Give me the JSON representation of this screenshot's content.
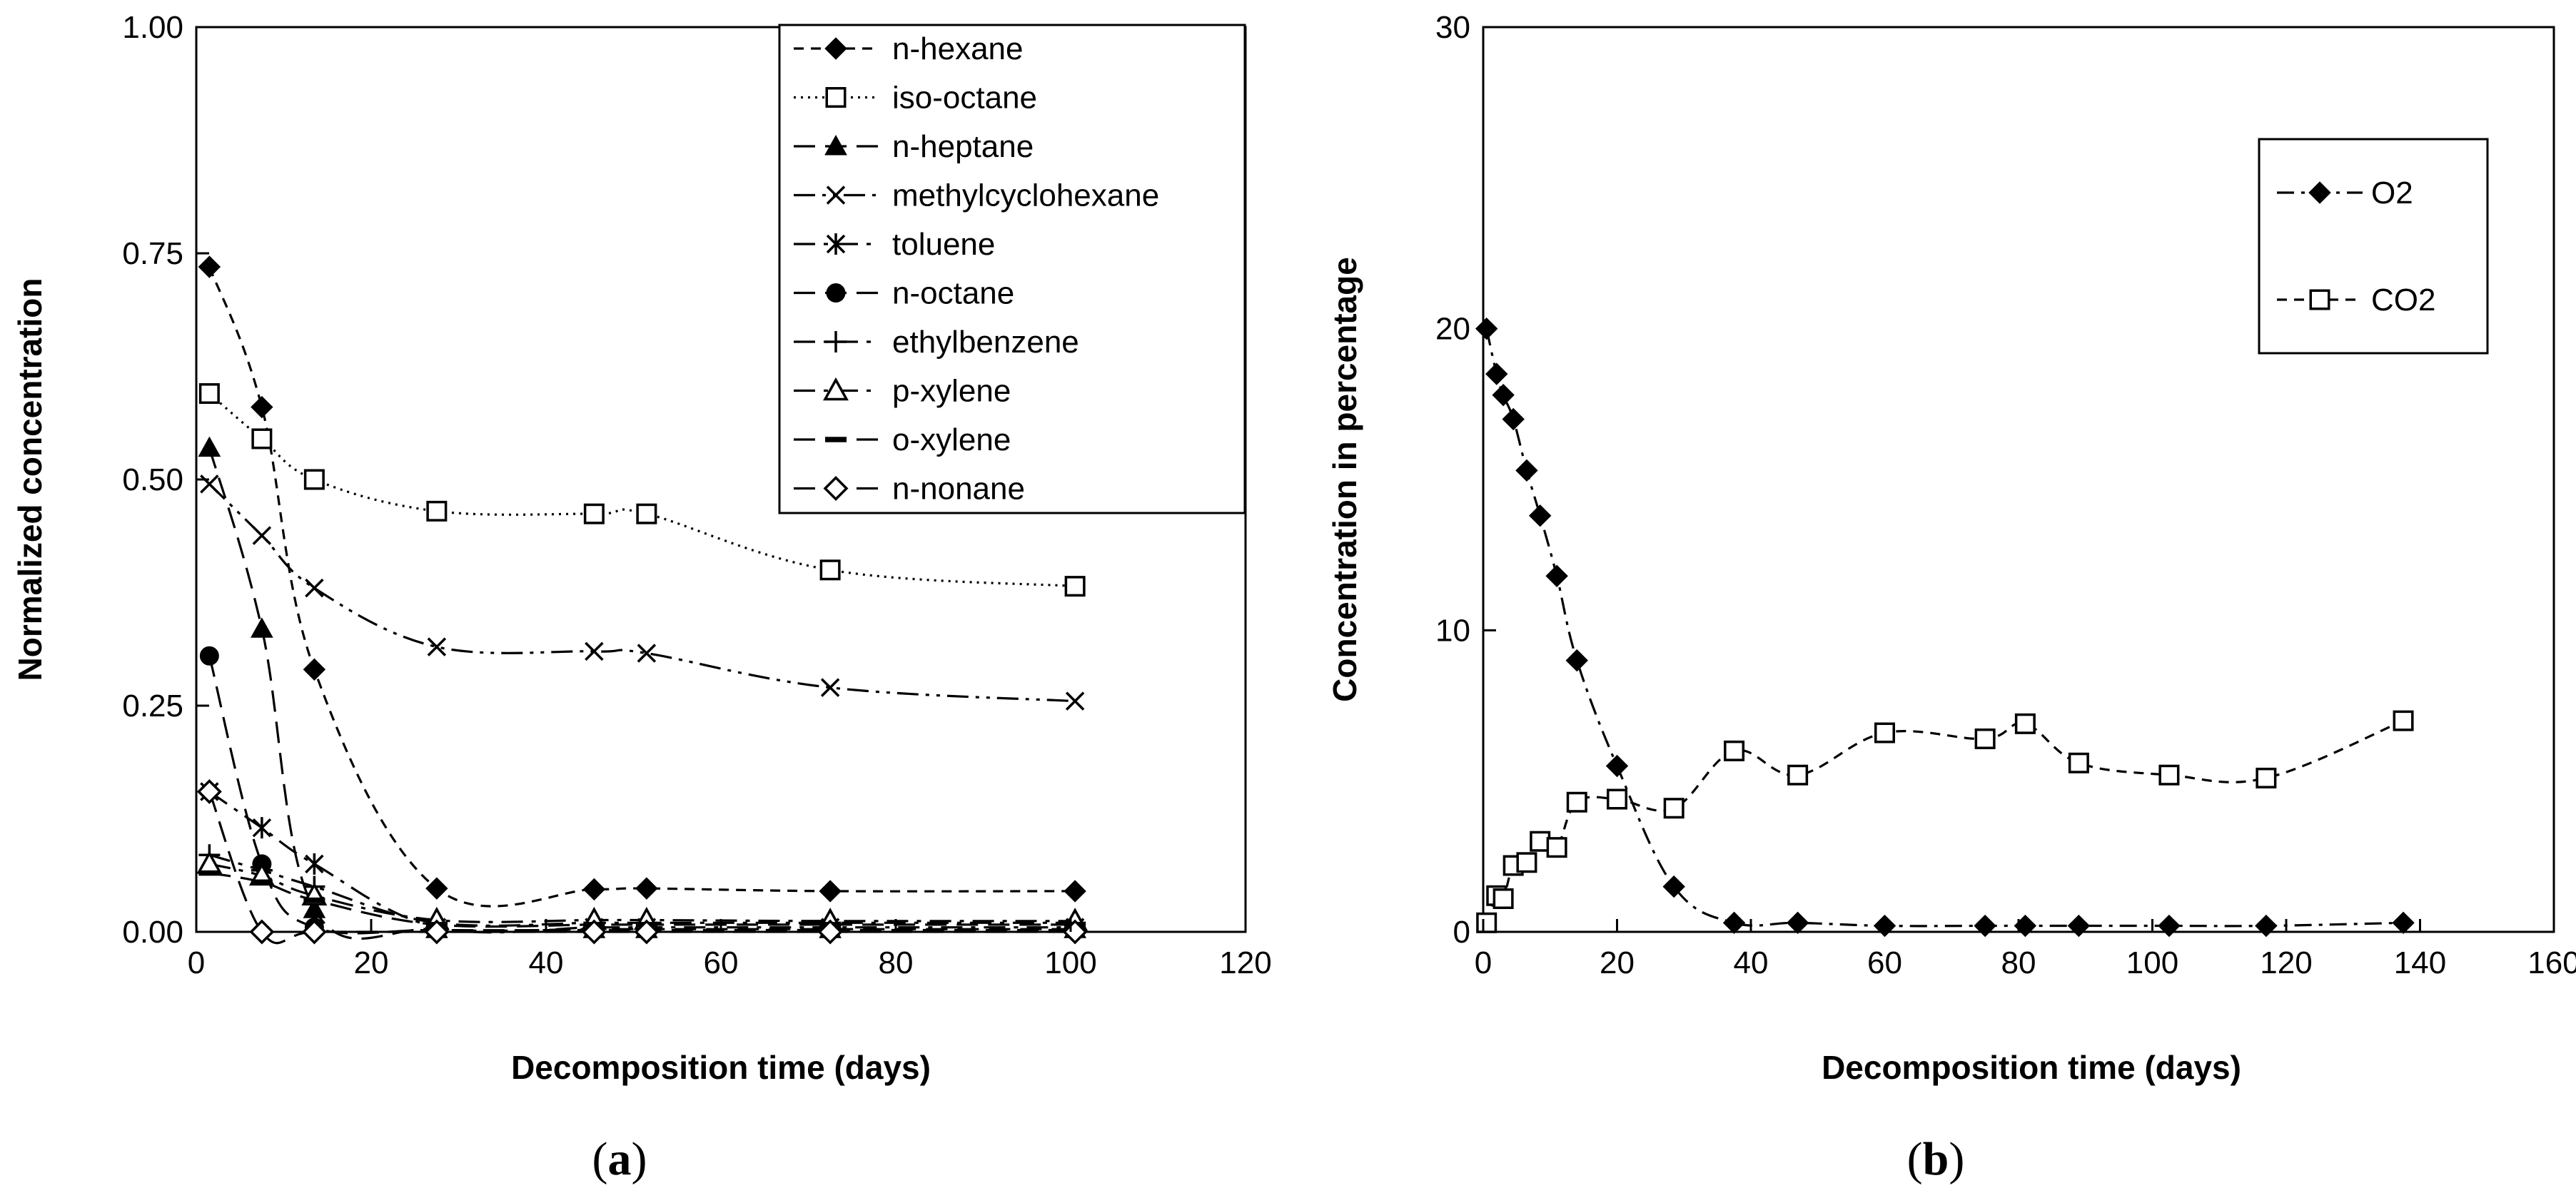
{
  "chart_data": [
    {
      "panel": "a",
      "type": "line",
      "title": "",
      "xlabel": "Decomposition time (days)",
      "ylabel": "Normalized concentration",
      "xlim": [
        0,
        120
      ],
      "ylim": [
        0,
        1
      ],
      "xticks": [
        "0",
        "20",
        "40",
        "60",
        "80",
        "100",
        "120"
      ],
      "yticks": [
        "0.00",
        "0.25",
        "0.50",
        "0.75",
        "1.00"
      ],
      "legend_position": "top-right",
      "series": [
        {
          "name": "n-hexane",
          "marker": "diamond-filled",
          "dash": "dashed",
          "x": [
            1.5,
            7.5,
            13.5,
            27.5,
            45.5,
            51.5,
            72.5,
            100.5
          ],
          "y": [
            0.735,
            0.58,
            0.29,
            0.048,
            0.047,
            0.048,
            0.045,
            0.045
          ]
        },
        {
          "name": "iso-octane",
          "marker": "square-open",
          "dash": "dotted",
          "x": [
            1.5,
            7.5,
            13.5,
            27.5,
            45.5,
            51.5,
            72.5,
            100.5
          ],
          "y": [
            0.595,
            0.545,
            0.5,
            0.465,
            0.462,
            0.462,
            0.4,
            0.382
          ]
        },
        {
          "name": "n-heptane",
          "marker": "triangle-filled",
          "dash": "longdash",
          "x": [
            1.5,
            7.5,
            13.5,
            27.5,
            45.5,
            51.5,
            72.5,
            100.5
          ],
          "y": [
            0.535,
            0.335,
            0.025,
            0.003,
            0.003,
            0.003,
            0.003,
            0.003
          ]
        },
        {
          "name": "methylcyclohexane",
          "marker": "x",
          "dash": "dashdotdot",
          "x": [
            1.5,
            7.5,
            13.5,
            27.5,
            45.5,
            51.5,
            72.5,
            100.5
          ],
          "y": [
            0.495,
            0.438,
            0.38,
            0.315,
            0.31,
            0.308,
            0.27,
            0.255
          ]
        },
        {
          "name": "toluene",
          "marker": "asterisk",
          "dash": "longdashdot",
          "x": [
            1.5,
            7.5,
            13.5,
            27.5,
            45.5,
            51.5,
            72.5,
            100.5
          ],
          "y": [
            0.155,
            0.115,
            0.075,
            0.005,
            0.005,
            0.005,
            0.005,
            0.005
          ]
        },
        {
          "name": "n-octane",
          "marker": "circle-filled",
          "dash": "longdash",
          "x": [
            1.5,
            7.5,
            13.5,
            27.5,
            45.5,
            51.5,
            72.5,
            100.5
          ],
          "y": [
            0.305,
            0.075,
            0.005,
            0.002,
            0.002,
            0.002,
            0.002,
            0.002
          ]
        },
        {
          "name": "ethylbenzene",
          "marker": "plus",
          "dash": "longdashdot",
          "x": [
            1.5,
            7.5,
            13.5,
            27.5,
            45.5,
            51.5,
            72.5,
            100.5
          ],
          "y": [
            0.085,
            0.068,
            0.05,
            0.01,
            0.01,
            0.01,
            0.01,
            0.01
          ]
        },
        {
          "name": "p-xylene",
          "marker": "triangle-open",
          "dash": "longdashdot",
          "x": [
            1.5,
            7.5,
            13.5,
            27.5,
            45.5,
            51.5,
            72.5,
            100.5
          ],
          "y": [
            0.075,
            0.062,
            0.04,
            0.013,
            0.013,
            0.013,
            0.012,
            0.012
          ]
        },
        {
          "name": "o-xylene",
          "marker": "dash",
          "dash": "longdash",
          "x": [
            1.5,
            7.5,
            13.5,
            27.5,
            45.5,
            51.5,
            72.5,
            100.5
          ],
          "y": [
            0.065,
            0.055,
            0.035,
            0.008,
            0.008,
            0.008,
            0.008,
            0.008
          ]
        },
        {
          "name": "n-nonane",
          "marker": "diamond-open",
          "dash": "longdash",
          "x": [
            1.5,
            7.5,
            13.5,
            27.5,
            45.5,
            51.5,
            72.5,
            100.5
          ],
          "y": [
            0.155,
            0.0,
            0.0,
            0.0,
            0.0,
            0.0,
            0.0,
            0.0
          ]
        }
      ],
      "panel_label": "(a)"
    },
    {
      "panel": "b",
      "type": "line",
      "title": "",
      "xlabel": "Decomposition time (days)",
      "ylabel": "Concentration in percentage",
      "xlim": [
        0,
        160
      ],
      "ylim": [
        0,
        30
      ],
      "xticks": [
        "0",
        "20",
        "40",
        "60",
        "80",
        "100",
        "120",
        "140",
        "160"
      ],
      "yticks": [
        "0",
        "10",
        "20",
        "30"
      ],
      "legend_position": "top-right",
      "series": [
        {
          "name": "O2",
          "marker": "diamond-filled",
          "dash": "dashdot",
          "x": [
            0.5,
            2,
            3,
            4.5,
            6.5,
            8.5,
            11,
            14,
            20,
            28.5,
            37.5,
            47,
            60,
            75,
            81,
            89,
            102.5,
            117,
            137.5
          ],
          "y": [
            20,
            18.5,
            17.8,
            17,
            15.3,
            13.8,
            11.8,
            9,
            5.5,
            1.5,
            0.3,
            0.3,
            0.2,
            0.2,
            0.2,
            0.2,
            0.2,
            0.2,
            0.3
          ]
        },
        {
          "name": "CO2",
          "marker": "square-open",
          "dash": "dashed",
          "x": [
            0.5,
            2,
            3,
            4.5,
            6.5,
            8.5,
            11,
            14,
            20,
            28.5,
            37.5,
            47,
            60,
            75,
            81,
            89,
            102.5,
            117,
            137.5
          ],
          "y": [
            0.3,
            1.2,
            1.1,
            2.2,
            2.3,
            3.0,
            2.8,
            4.3,
            4.4,
            4.1,
            6.0,
            5.2,
            6.6,
            6.4,
            6.9,
            5.6,
            5.2,
            5.1,
            7.0
          ]
        }
      ],
      "panel_label": "(b)"
    }
  ]
}
